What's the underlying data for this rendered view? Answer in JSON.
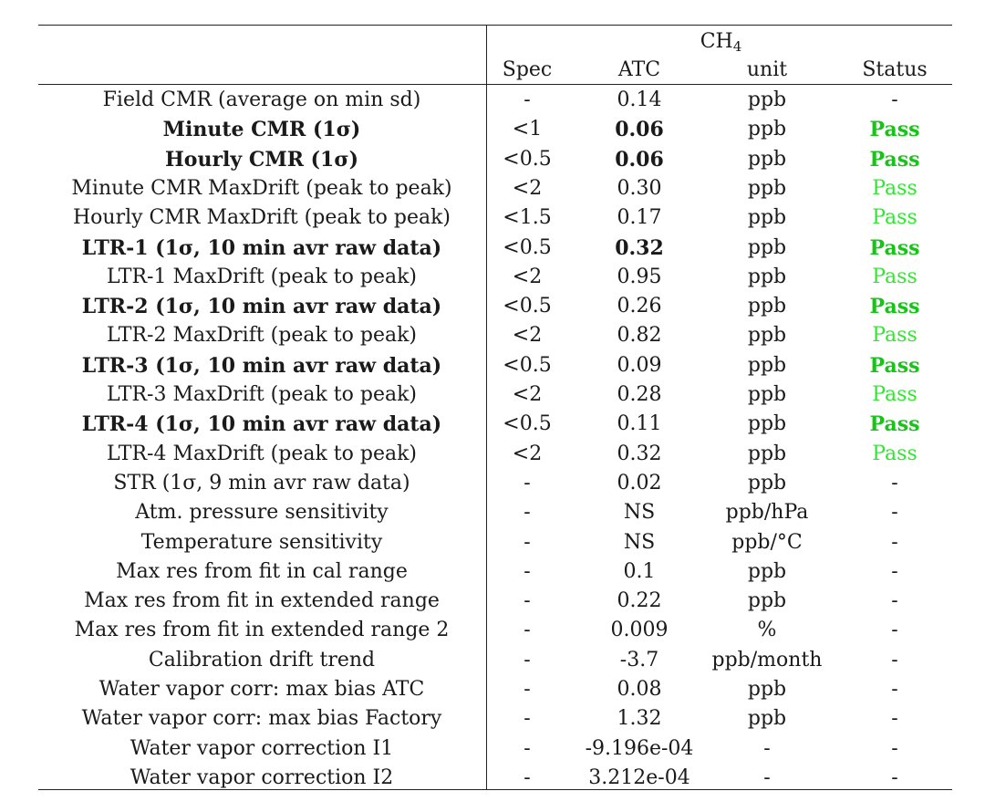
{
  "table": {
    "group_header": {
      "species": "CH",
      "subscript": "4"
    },
    "columns": [
      "Spec",
      "ATC",
      "unit",
      "Status"
    ],
    "rows": [
      {
        "label": "Field CMR (average on min sd)",
        "spec": "-",
        "atc": "0.14",
        "unit": "ppb",
        "status": "-",
        "bold": false,
        "atc_bold": false,
        "status_style": "none"
      },
      {
        "label": "Minute CMR (1σ)",
        "spec": "<1",
        "atc": "0.06",
        "unit": "ppb",
        "status": "Pass",
        "bold": true,
        "atc_bold": true,
        "status_style": "strong"
      },
      {
        "label": "Hourly CMR (1σ)",
        "spec": "<0.5",
        "atc": "0.06",
        "unit": "ppb",
        "status": "Pass",
        "bold": true,
        "atc_bold": true,
        "status_style": "strong"
      },
      {
        "label": "Minute CMR MaxDrift (peak to peak)",
        "spec": "<2",
        "atc": "0.30",
        "unit": "ppb",
        "status": "Pass",
        "bold": false,
        "atc_bold": false,
        "status_style": "light"
      },
      {
        "label": "Hourly CMR MaxDrift (peak to peak)",
        "spec": "<1.5",
        "atc": "0.17",
        "unit": "ppb",
        "status": "Pass",
        "bold": false,
        "atc_bold": false,
        "status_style": "light"
      },
      {
        "label": "LTR-1 (1σ, 10 min avr raw data)",
        "spec": "<0.5",
        "atc": "0.32",
        "unit": "ppb",
        "status": "Pass",
        "bold": true,
        "atc_bold": true,
        "status_style": "strong"
      },
      {
        "label": "LTR-1 MaxDrift (peak to peak)",
        "spec": "<2",
        "atc": "0.95",
        "unit": "ppb",
        "status": "Pass",
        "bold": false,
        "atc_bold": false,
        "status_style": "light"
      },
      {
        "label": "LTR-2 (1σ, 10 min avr raw data)",
        "spec": "<0.5",
        "atc": "0.26",
        "unit": "ppb",
        "status": "Pass",
        "bold": true,
        "atc_bold": false,
        "status_style": "strong"
      },
      {
        "label": "LTR-2 MaxDrift (peak to peak)",
        "spec": "<2",
        "atc": "0.82",
        "unit": "ppb",
        "status": "Pass",
        "bold": false,
        "atc_bold": false,
        "status_style": "light"
      },
      {
        "label": "LTR-3 (1σ, 10 min avr raw data)",
        "spec": "<0.5",
        "atc": "0.09",
        "unit": "ppb",
        "status": "Pass",
        "bold": true,
        "atc_bold": false,
        "status_style": "strong"
      },
      {
        "label": "LTR-3 MaxDrift (peak to peak)",
        "spec": "<2",
        "atc": "0.28",
        "unit": "ppb",
        "status": "Pass",
        "bold": false,
        "atc_bold": false,
        "status_style": "light"
      },
      {
        "label": "LTR-4 (1σ, 10 min avr raw data)",
        "spec": "<0.5",
        "atc": "0.11",
        "unit": "ppb",
        "status": "Pass",
        "bold": true,
        "atc_bold": false,
        "status_style": "strong"
      },
      {
        "label": "LTR-4 MaxDrift (peak to peak)",
        "spec": "<2",
        "atc": "0.32",
        "unit": "ppb",
        "status": "Pass",
        "bold": false,
        "atc_bold": false,
        "status_style": "light"
      },
      {
        "label": "STR (1σ, 9 min avr raw data)",
        "spec": "-",
        "atc": "0.02",
        "unit": "ppb",
        "status": "-",
        "bold": false,
        "atc_bold": false,
        "status_style": "none"
      },
      {
        "label": "Atm. pressure sensitivity",
        "spec": "-",
        "atc": "NS",
        "unit": "ppb/hPa",
        "status": "-",
        "bold": false,
        "atc_bold": false,
        "status_style": "none"
      },
      {
        "label": "Temperature sensitivity",
        "spec": "-",
        "atc": "NS",
        "unit": "ppb/°C",
        "status": "-",
        "bold": false,
        "atc_bold": false,
        "status_style": "none"
      },
      {
        "label": "Max res from fit in cal range",
        "spec": "-",
        "atc": "0.1",
        "unit": "ppb",
        "status": "-",
        "bold": false,
        "atc_bold": false,
        "status_style": "none"
      },
      {
        "label": "Max res from fit in extended range",
        "spec": "-",
        "atc": "0.22",
        "unit": "ppb",
        "status": "-",
        "bold": false,
        "atc_bold": false,
        "status_style": "none"
      },
      {
        "label": "Max res from fit in extended range 2",
        "spec": "-",
        "atc": "0.009",
        "unit": "%",
        "status": "-",
        "bold": false,
        "atc_bold": false,
        "status_style": "none"
      },
      {
        "label": "Calibration drift trend",
        "spec": "-",
        "atc": "-3.7",
        "unit": "ppb/month",
        "status": "-",
        "bold": false,
        "atc_bold": false,
        "status_style": "none"
      },
      {
        "label": "Water vapor corr: max bias ATC",
        "spec": "-",
        "atc": "0.08",
        "unit": "ppb",
        "status": "-",
        "bold": false,
        "atc_bold": false,
        "status_style": "none"
      },
      {
        "label": "Water vapor corr: max bias Factory",
        "spec": "-",
        "atc": "1.32",
        "unit": "ppb",
        "status": "-",
        "bold": false,
        "atc_bold": false,
        "status_style": "none"
      },
      {
        "label": "Water vapor correction I1",
        "spec": "-",
        "atc": "-9.196e-04",
        "unit": "-",
        "status": "-",
        "bold": false,
        "atc_bold": false,
        "status_style": "none"
      },
      {
        "label": "Water vapor correction I2",
        "spec": "-",
        "atc": "3.212e-04",
        "unit": "-",
        "status": "-",
        "bold": false,
        "atc_bold": false,
        "status_style": "none"
      }
    ]
  }
}
